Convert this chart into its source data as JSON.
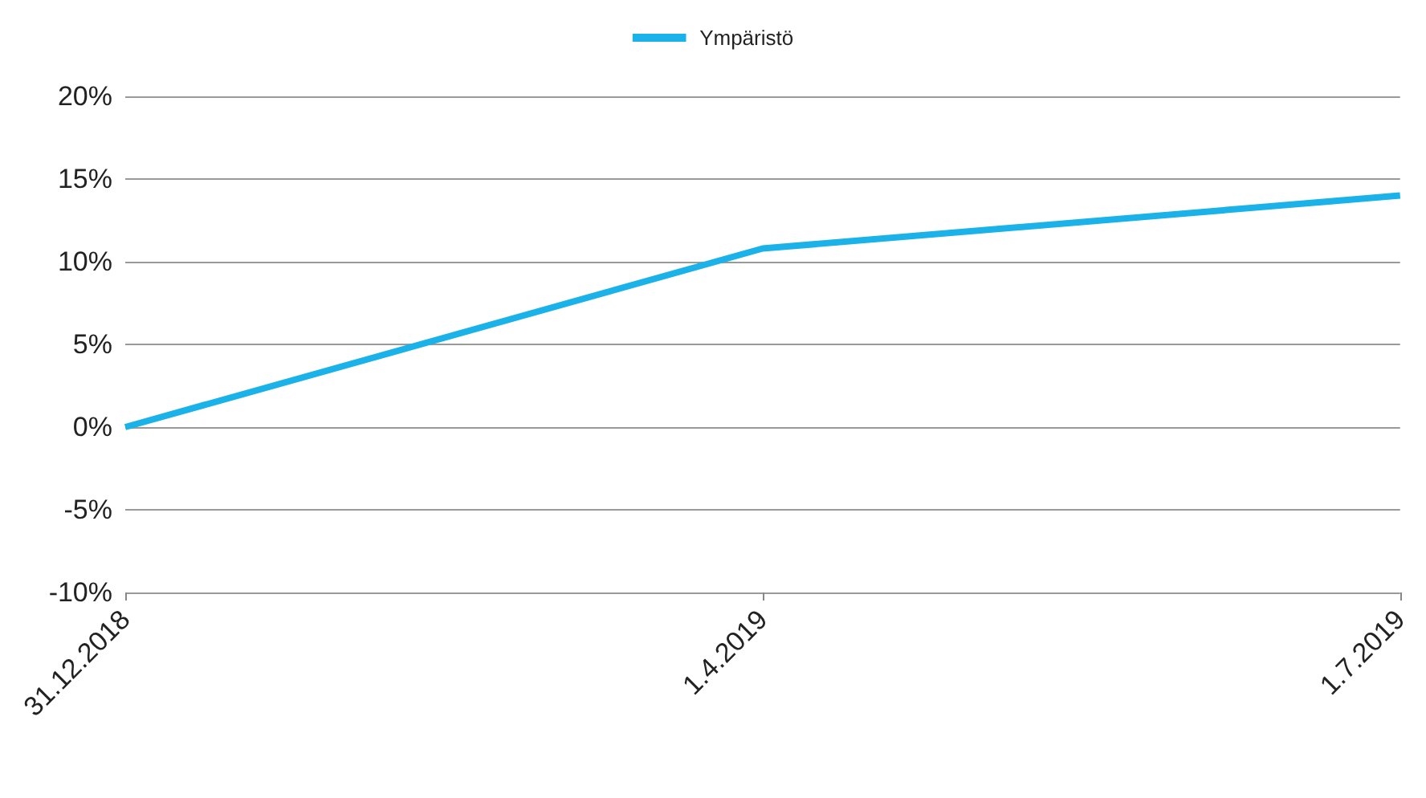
{
  "chart_data": {
    "type": "line",
    "categories": [
      "31.12.2018",
      "1.4.2019",
      "1.7.2019"
    ],
    "series": [
      {
        "name": "Ympäristö",
        "color": "#1ab2e8",
        "values": [
          0,
          10.8,
          14
        ]
      }
    ],
    "ylim": [
      -10,
      20
    ],
    "yticks": [
      {
        "value": -10,
        "label": "-10%"
      },
      {
        "value": -5,
        "label": "-5%"
      },
      {
        "value": 0,
        "label": "0%"
      },
      {
        "value": 5,
        "label": "5%"
      },
      {
        "value": 10,
        "label": "10%"
      },
      {
        "value": 15,
        "label": "15%"
      },
      {
        "value": 20,
        "label": "20%"
      }
    ],
    "grid": "y",
    "legend": "top",
    "marker": "none",
    "line_style": "solid"
  }
}
